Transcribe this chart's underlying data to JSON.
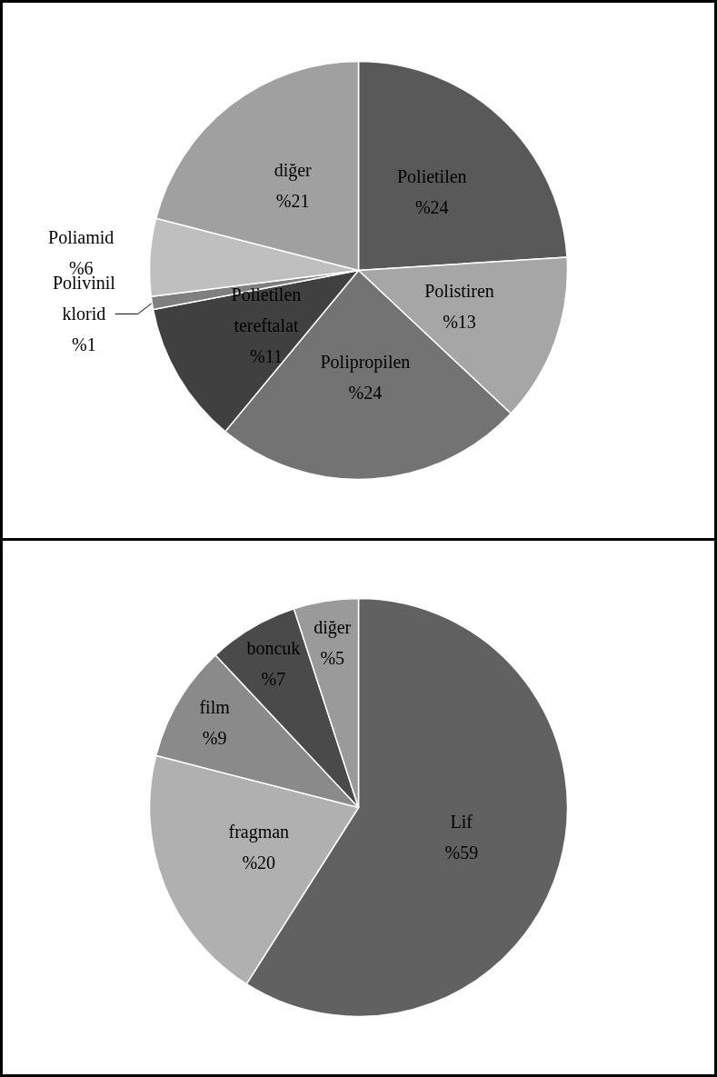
{
  "chart_data": [
    {
      "type": "pie",
      "categories": [
        "Polietilen",
        "Polistiren",
        "Polipropilen",
        "Polietilen tereftalat",
        "Polivinil klorid",
        "Poliamid",
        "diğer"
      ],
      "values": [
        24,
        13,
        24,
        11,
        1,
        6,
        21
      ],
      "value_labels": [
        "%24",
        "%13",
        "%24",
        "%11",
        "%1",
        "%6",
        "%21"
      ],
      "colors": [
        "#595959",
        "#a6a6a6",
        "#737373",
        "#404040",
        "#7f7f7f",
        "#bfbfbf",
        "#a0a0a0"
      ]
    },
    {
      "type": "pie",
      "categories": [
        "Lif",
        "fragman",
        "film",
        "boncuk",
        "diğer"
      ],
      "values": [
        59,
        20,
        9,
        7,
        5
      ],
      "value_labels": [
        "%59",
        "%20",
        "%9",
        "%7",
        "%5"
      ],
      "colors": [
        "#616161",
        "#b0b0b0",
        "#8a8a8a",
        "#4a4a4a",
        "#9a9a9a"
      ]
    }
  ]
}
